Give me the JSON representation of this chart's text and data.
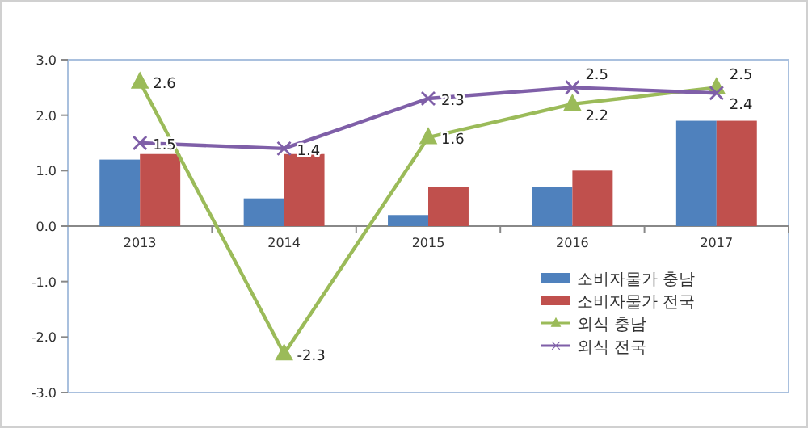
{
  "chart_data": {
    "type": "bar",
    "categories": [
      "2013",
      "2014",
      "2015",
      "2016",
      "2017"
    ],
    "series": [
      {
        "name": "소비자물가 충남",
        "color": "#4f81bd",
        "values": [
          1.2,
          0.5,
          0.2,
          0.7,
          1.9
        ]
      },
      {
        "name": "소비자물가 전국",
        "color": "#c0504d",
        "values": [
          1.3,
          1.3,
          0.7,
          1.0,
          1.9
        ]
      },
      {
        "name": "외식 충남",
        "type": "line",
        "color": "#9bbb59",
        "marker": "triangle",
        "values": [
          2.6,
          -2.3,
          1.6,
          2.2,
          2.5
        ],
        "value_labels": [
          "2.6",
          "-2.3",
          "1.6",
          "2.2",
          "2.5"
        ]
      },
      {
        "name": "외식 전국",
        "type": "line",
        "color": "#7f5fa8",
        "marker": "cross",
        "values": [
          1.5,
          1.4,
          2.3,
          2.5,
          2.4
        ],
        "value_labels": [
          "1.5",
          "1.4",
          "2.3",
          "2.5",
          "2.4"
        ]
      }
    ],
    "ylim": [
      -3,
      3
    ],
    "yticks": [
      {
        "value": -3,
        "label": "-3.0"
      },
      {
        "value": -2,
        "label": "-2.0"
      },
      {
        "value": -1,
        "label": "-1.0"
      },
      {
        "value": 0,
        "label": "0.0"
      },
      {
        "value": 1,
        "label": "1.0"
      },
      {
        "value": 2,
        "label": "2.0"
      },
      {
        "value": 3,
        "label": "3.0"
      }
    ],
    "grid": false,
    "legend": "bottom right"
  }
}
